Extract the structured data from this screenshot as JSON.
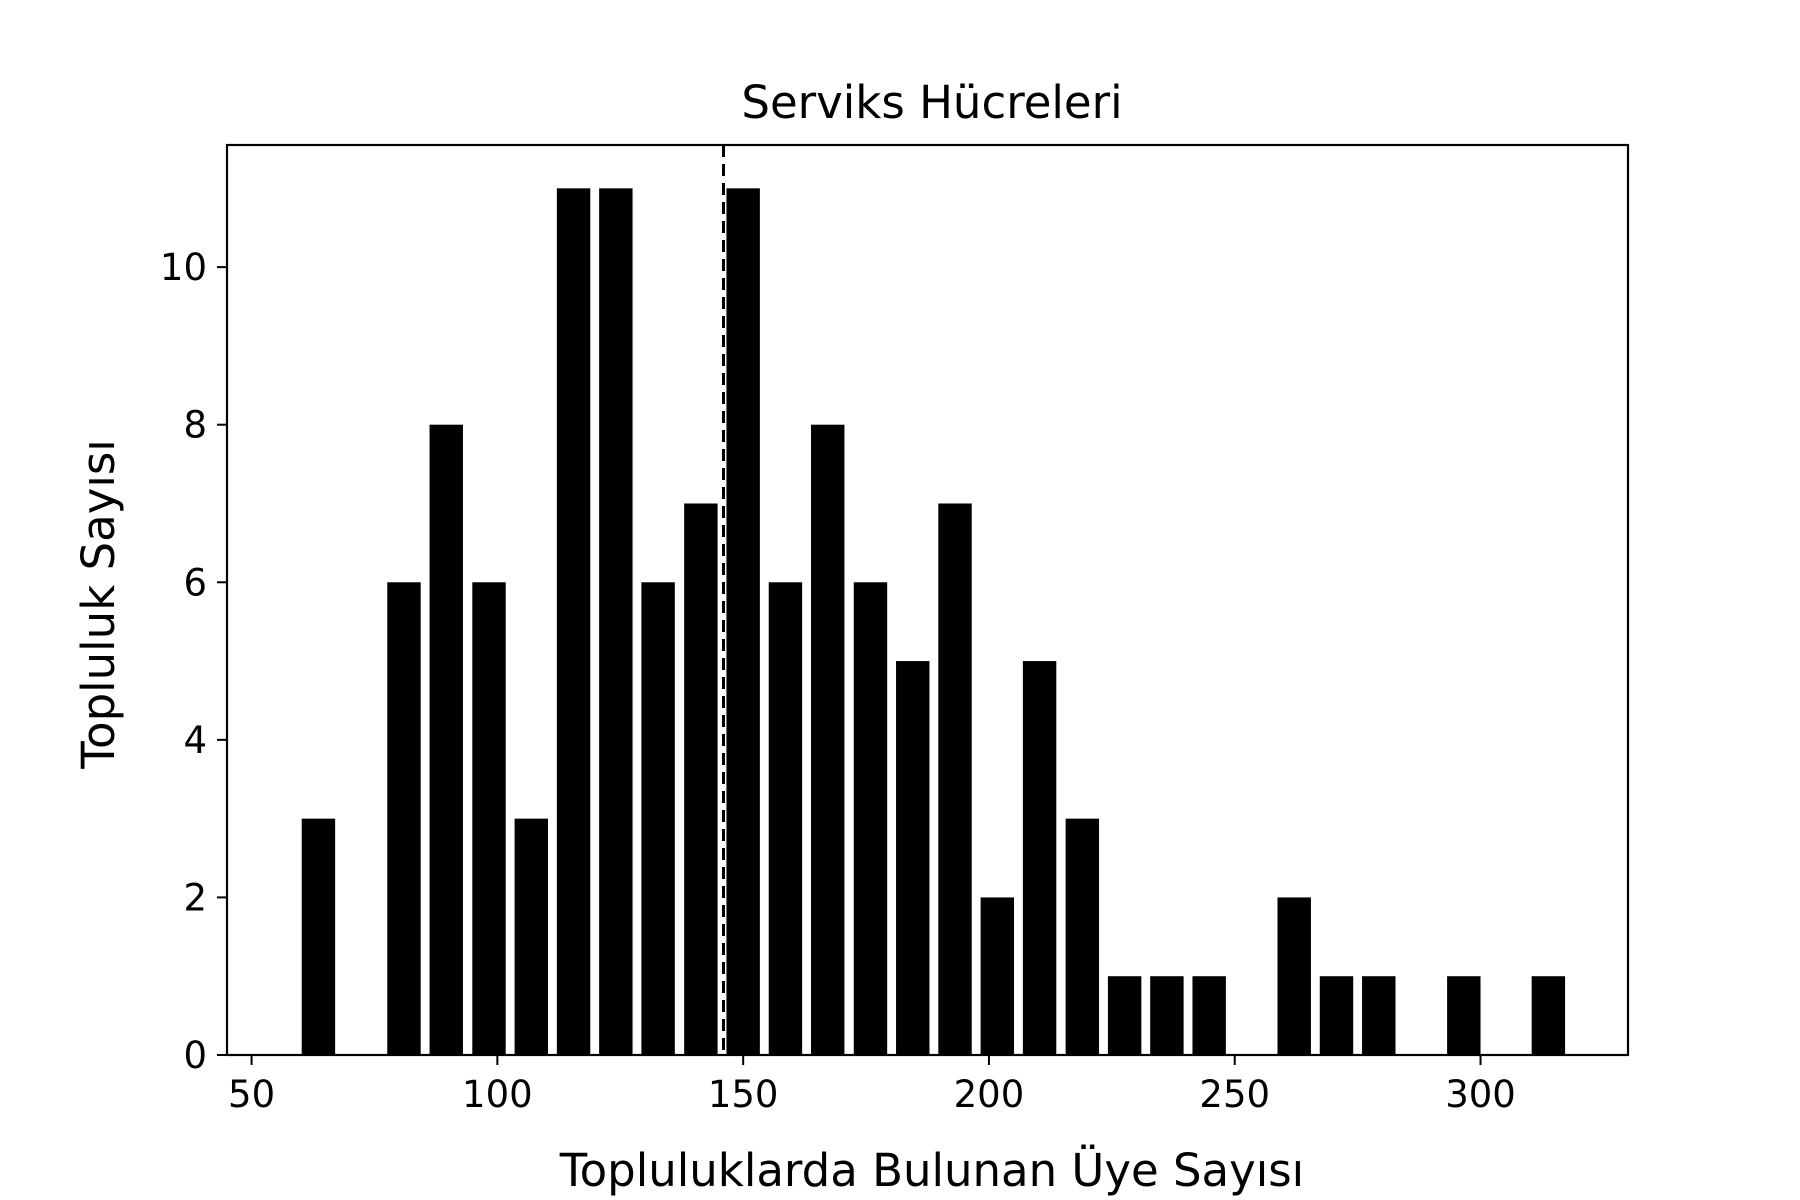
{
  "chart_data": {
    "type": "bar",
    "title": "Serviks Hücreleri",
    "xlabel": "Topluluklarda Bulunan Üye Sayısı",
    "ylabel": "Topluluk Sayısı",
    "xlim": [
      45,
      330
    ],
    "ylim": [
      0,
      11.55
    ],
    "xticks": [
      50,
      100,
      150,
      200,
      250,
      300
    ],
    "yticks": [
      0,
      2,
      4,
      6,
      8,
      10
    ],
    "bar_width": 6.8,
    "bar_color": "#000000",
    "bars": [
      {
        "x": 63.6,
        "value": 3
      },
      {
        "x": 81.0,
        "value": 6
      },
      {
        "x": 89.6,
        "value": 8
      },
      {
        "x": 98.3,
        "value": 6
      },
      {
        "x": 106.9,
        "value": 3
      },
      {
        "x": 115.5,
        "value": 11
      },
      {
        "x": 124.1,
        "value": 11
      },
      {
        "x": 132.7,
        "value": 6
      },
      {
        "x": 141.4,
        "value": 7
      },
      {
        "x": 150.0,
        "value": 11
      },
      {
        "x": 158.6,
        "value": 6
      },
      {
        "x": 167.2,
        "value": 8
      },
      {
        "x": 175.9,
        "value": 6
      },
      {
        "x": 184.5,
        "value": 5
      },
      {
        "x": 193.1,
        "value": 7
      },
      {
        "x": 201.7,
        "value": 2
      },
      {
        "x": 210.3,
        "value": 5
      },
      {
        "x": 219.0,
        "value": 3
      },
      {
        "x": 227.6,
        "value": 1
      },
      {
        "x": 236.2,
        "value": 1
      },
      {
        "x": 244.8,
        "value": 1
      },
      {
        "x": 262.1,
        "value": 2
      },
      {
        "x": 270.7,
        "value": 1
      },
      {
        "x": 279.3,
        "value": 1
      },
      {
        "x": 296.6,
        "value": 1
      },
      {
        "x": 313.8,
        "value": 1
      }
    ],
    "reference_line": {
      "x": 146,
      "style": "dashed"
    },
    "grid": false,
    "legend": "none"
  }
}
